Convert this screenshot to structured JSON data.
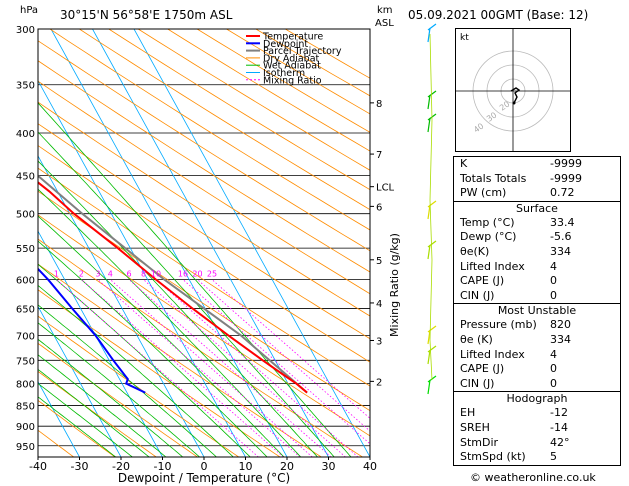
{
  "header": {
    "hpa_label": "hPa",
    "location": "30°15'N  56°58'E  1750m  ASL",
    "km_label": "km",
    "asl_label": "ASL",
    "datetime": "05.09.2021  00GMT  (Base: 12)"
  },
  "footer": {
    "copyright": "© weatheronline.co.uk"
  },
  "chart_data": {
    "type": "skew-t",
    "xlabel": "Dewpoint / Temperature (°C)",
    "ylabel_right": "Mixing Ratio (g/kg)",
    "x_ticks": [
      -40,
      -30,
      -20,
      -10,
      0,
      10,
      20,
      30,
      40
    ],
    "y_ticks": [
      300,
      350,
      400,
      450,
      500,
      550,
      600,
      650,
      700,
      750,
      800,
      850,
      900,
      950
    ],
    "xlim": [
      -40,
      40
    ],
    "ylim": [
      980,
      300
    ],
    "legend": [
      "Temperature",
      "Dewpoint",
      "Parcel Trajectory",
      "Dry Adiabat",
      "Wet Adiabat",
      "Isotherm",
      "Mixing Ratio"
    ],
    "legend_colors": [
      "#ff0000",
      "#0000ff",
      "#808080",
      "#ff8c00",
      "#00bb00",
      "#00aaff",
      "#ff00ff"
    ],
    "km_ticks": [
      {
        "label": "8",
        "p": 368
      },
      {
        "label": "7",
        "p": 424
      },
      {
        "label": "LCL",
        "p": 464
      },
      {
        "label": "6",
        "p": 490
      },
      {
        "label": "5",
        "p": 568
      },
      {
        "label": "4",
        "p": 640
      },
      {
        "label": "3",
        "p": 710
      },
      {
        "label": "2",
        "p": 795
      }
    ],
    "mixing_ratio_labels": [
      {
        "label": "1",
        "t": -12
      },
      {
        "label": "2",
        "t": -6
      },
      {
        "label": "3",
        "t": -2
      },
      {
        "label": "4",
        "t": 1
      },
      {
        "label": "6",
        "t": 5.5
      },
      {
        "label": "8",
        "t": 9
      },
      {
        "label": "10",
        "t": 12
      },
      {
        "label": "16",
        "t": 18.5
      },
      {
        "label": "20",
        "t": 22
      },
      {
        "label": "25",
        "t": 25.5
      }
    ],
    "temperature_series": [
      [
        820,
        33.4
      ],
      [
        800,
        32
      ],
      [
        780,
        30
      ],
      [
        750,
        27
      ],
      [
        700,
        22
      ],
      [
        650,
        17
      ],
      [
        600,
        12
      ],
      [
        550,
        7
      ],
      [
        500,
        1
      ],
      [
        470,
        -2
      ],
      [
        455,
        -4
      ],
      [
        440,
        -4
      ],
      [
        420,
        -5
      ],
      [
        400,
        -8
      ],
      [
        380,
        -9
      ],
      [
        360,
        -12
      ],
      [
        340,
        -14
      ],
      [
        320,
        -18
      ],
      [
        300,
        -21
      ]
    ],
    "dewpoint_series": [
      [
        820,
        -5.6
      ],
      [
        800,
        -9
      ],
      [
        790,
        -8
      ],
      [
        750,
        -9
      ],
      [
        700,
        -10
      ],
      [
        650,
        -12
      ],
      [
        600,
        -14
      ],
      [
        550,
        -17
      ],
      [
        500,
        -19
      ],
      [
        490,
        -21
      ],
      [
        480,
        -33
      ],
      [
        460,
        -47
      ],
      [
        450,
        -55
      ],
      [
        420,
        -50
      ],
      [
        410,
        -55
      ],
      [
        400,
        -60
      ],
      [
        380,
        -60
      ],
      [
        350,
        -62
      ],
      [
        300,
        -68
      ]
    ],
    "parcel_series": [
      [
        820,
        33.4
      ],
      [
        700,
        25
      ],
      [
        600,
        14
      ],
      [
        500,
        3
      ],
      [
        464,
        -1
      ],
      [
        400,
        -9
      ],
      [
        350,
        -16
      ],
      [
        300,
        -24
      ]
    ]
  },
  "hodograph": {
    "label": "kt",
    "ring_labels": [
      "40",
      "30",
      "20"
    ]
  },
  "indices": {
    "rows": [
      {
        "key": "K",
        "value": "-9999"
      },
      {
        "key": "Totals Totals",
        "value": "-9999"
      },
      {
        "key": "PW (cm)",
        "value": "0.72"
      }
    ]
  },
  "surface": {
    "title": "Surface",
    "rows": [
      {
        "key": "Temp (°C)",
        "value": "33.4"
      },
      {
        "key": "Dewp (°C)",
        "value": "-5.6"
      },
      {
        "key": "θe(K)",
        "value": "334"
      },
      {
        "key": "Lifted Index",
        "value": "4"
      },
      {
        "key": "CAPE (J)",
        "value": "0"
      },
      {
        "key": "CIN (J)",
        "value": "0"
      }
    ]
  },
  "most_unstable": {
    "title": "Most Unstable",
    "rows": [
      {
        "key": "Pressure (mb)",
        "value": "820"
      },
      {
        "key": "θe (K)",
        "value": "334"
      },
      {
        "key": "Lifted Index",
        "value": "4"
      },
      {
        "key": "CAPE (J)",
        "value": "0"
      },
      {
        "key": "CIN (J)",
        "value": "0"
      }
    ]
  },
  "hodograph_table": {
    "title": "Hodograph",
    "rows": [
      {
        "key": "EH",
        "value": "-12"
      },
      {
        "key": "SREH",
        "value": "-14"
      },
      {
        "key": "StmDir",
        "value": "42°"
      },
      {
        "key": "StmSpd (kt)",
        "value": "5"
      }
    ]
  }
}
